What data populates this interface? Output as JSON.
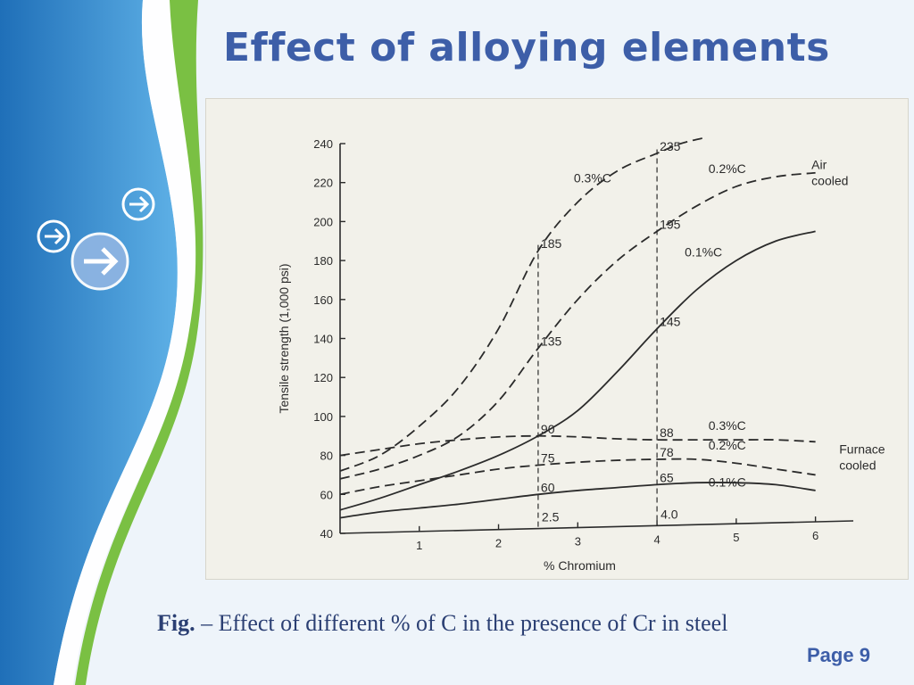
{
  "slide": {
    "title": "Effect of alloying elements",
    "caption_prefix": "Fig.",
    "caption_text": " – Effect of different % of C in the presence of Cr in steel",
    "page_label": "Page 9",
    "colors": {
      "title": "#3d5ea8",
      "caption": "#2b3f73",
      "deco_blue": "#3a8fd0",
      "deco_green": "#7ac043"
    },
    "icons": [
      "arrow-right-circle-icon",
      "arrow-right-circle-icon",
      "arrow-right-circle-icon"
    ]
  },
  "chart_data": {
    "type": "line",
    "xlabel": "% Chromium",
    "ylabel": "Tensile strength (1,000 psi)",
    "xlim": [
      0,
      6.5
    ],
    "ylim": [
      40,
      240
    ],
    "xticks": [
      1,
      2,
      3,
      4,
      5,
      6
    ],
    "yticks": [
      40,
      60,
      80,
      100,
      120,
      140,
      160,
      180,
      200,
      220,
      240
    ],
    "group_labels": {
      "air": [
        "Air",
        "cooled"
      ],
      "furnace": [
        "Furnace",
        "cooled"
      ]
    },
    "series": [
      {
        "name": "0.3% C",
        "group": "air",
        "style": "dashed",
        "x": [
          0,
          0.5,
          1,
          1.5,
          2,
          2.5,
          3,
          3.5,
          4,
          4.3,
          4.6
        ],
        "y": [
          72,
          80,
          95,
          115,
          145,
          185,
          210,
          226,
          235,
          240,
          243
        ]
      },
      {
        "name": "0.2% C",
        "group": "air",
        "style": "dashed",
        "x": [
          0,
          0.5,
          1,
          1.5,
          2,
          2.5,
          3,
          3.5,
          4,
          4.5,
          5,
          5.5,
          6
        ],
        "y": [
          68,
          73,
          80,
          90,
          108,
          135,
          160,
          180,
          195,
          208,
          218,
          223,
          225
        ]
      },
      {
        "name": "0.1% C",
        "group": "air",
        "style": "solid",
        "x": [
          0,
          0.5,
          1,
          1.5,
          2,
          2.5,
          3,
          3.5,
          4,
          4.5,
          5,
          5.5,
          6
        ],
        "y": [
          52,
          58,
          65,
          72,
          80,
          90,
          103,
          123,
          145,
          165,
          180,
          190,
          195
        ]
      },
      {
        "name": "0.3% C",
        "group": "furnace",
        "style": "dashed",
        "x": [
          0,
          0.5,
          1,
          1.5,
          2,
          2.5,
          3,
          3.5,
          4,
          4.5,
          5,
          5.5,
          6
        ],
        "y": [
          80,
          83,
          86,
          88,
          89.5,
          90,
          89.5,
          88.5,
          88,
          88,
          88,
          88,
          87
        ]
      },
      {
        "name": "0.2% C",
        "group": "furnace",
        "style": "dashed",
        "x": [
          0,
          0.5,
          1,
          1.5,
          2,
          2.5,
          3,
          3.5,
          4,
          4.5,
          5,
          5.5,
          6
        ],
        "y": [
          60,
          64,
          67,
          70,
          73,
          75,
          76.5,
          77.5,
          78,
          78,
          76,
          73,
          70
        ]
      },
      {
        "name": "0.1% C",
        "group": "furnace",
        "style": "solid",
        "x": [
          0,
          0.5,
          1,
          1.5,
          2,
          2.5,
          3,
          3.5,
          4,
          4.5,
          5,
          5.5,
          6
        ],
        "y": [
          48,
          51,
          53,
          55,
          57.5,
          60,
          62,
          63.5,
          65,
          66,
          66,
          65,
          62
        ]
      }
    ],
    "reference_lines": [
      {
        "x": 2.5,
        "label": "2.5"
      },
      {
        "x": 4.0,
        "label": "4.0"
      }
    ],
    "annotations": [
      {
        "x": 2.5,
        "y": 185,
        "label": "185"
      },
      {
        "x": 2.5,
        "y": 135,
        "label": "135"
      },
      {
        "x": 2.5,
        "y": 90,
        "label": "90"
      },
      {
        "x": 2.5,
        "y": 75,
        "label": "75"
      },
      {
        "x": 2.5,
        "y": 60,
        "label": "60"
      },
      {
        "x": 4.0,
        "y": 235,
        "label": "235"
      },
      {
        "x": 4.0,
        "y": 195,
        "label": "195"
      },
      {
        "x": 4.0,
        "y": 145,
        "label": "145"
      },
      {
        "x": 4.0,
        "y": 88,
        "label": "88"
      },
      {
        "x": 4.0,
        "y": 78,
        "label": "78"
      },
      {
        "x": 4.0,
        "y": 65,
        "label": "65"
      }
    ],
    "series_labels": [
      {
        "text": "0.3%C",
        "x": 2.95,
        "y": 220
      },
      {
        "text": "0.2%C",
        "x": 4.65,
        "y": 225
      },
      {
        "text": "0.1%C",
        "x": 4.35,
        "y": 182
      },
      {
        "text": "0.3%C",
        "x": 4.65,
        "y": 93
      },
      {
        "text": "0.2%C",
        "x": 4.65,
        "y": 83
      },
      {
        "text": "0.1%C",
        "x": 4.65,
        "y": 64
      }
    ]
  }
}
